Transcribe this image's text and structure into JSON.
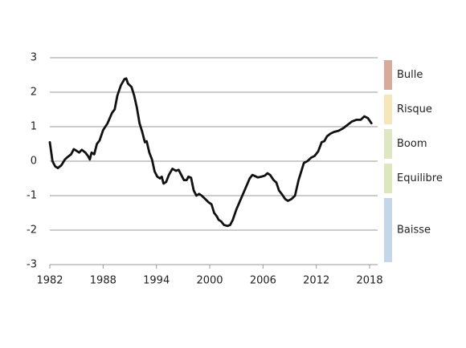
{
  "chart_data": {
    "type": "line",
    "x": [
      1982.0,
      1982.3,
      1982.6,
      1982.9,
      1983.3,
      1983.7,
      1984.0,
      1984.4,
      1984.7,
      1985.0,
      1985.3,
      1985.6,
      1986.0,
      1986.3,
      1986.5,
      1986.7,
      1987.0,
      1987.3,
      1987.6,
      1988.0,
      1988.5,
      1989.0,
      1989.3,
      1989.6,
      1990.0,
      1990.4,
      1990.6,
      1990.8,
      1991.2,
      1991.5,
      1991.8,
      1992.1,
      1992.4,
      1992.7,
      1992.9,
      1993.2,
      1993.5,
      1993.8,
      1994.1,
      1994.4,
      1994.6,
      1994.8,
      1995.1,
      1995.4,
      1995.8,
      1996.2,
      1996.5,
      1996.8,
      1997.1,
      1997.4,
      1997.6,
      1997.9,
      1998.2,
      1998.5,
      1998.8,
      1999.1,
      1999.5,
      1999.9,
      2000.2,
      2000.5,
      2000.8,
      2001.0,
      2001.3,
      2001.6,
      2002.0,
      2002.3,
      2002.6,
      2003.0,
      2003.5,
      2004.0,
      2004.5,
      2004.8,
      2005.0,
      2005.4,
      2005.8,
      2006.2,
      2006.5,
      2006.8,
      2007.2,
      2007.5,
      2007.8,
      2008.1,
      2008.5,
      2008.8,
      2009.2,
      2009.6,
      2010.0,
      2010.3,
      2010.6,
      2011.0,
      2011.4,
      2011.8,
      2012.2,
      2012.6,
      2012.9,
      2013.2,
      2013.6,
      2014.0,
      2014.5,
      2015.0,
      2015.5,
      2016.0,
      2016.5,
      2017.0,
      2017.4,
      2017.8,
      2018.2
    ],
    "values": [
      0.55,
      0.0,
      -0.15,
      -0.2,
      -0.12,
      0.05,
      0.12,
      0.2,
      0.35,
      0.3,
      0.25,
      0.33,
      0.25,
      0.15,
      0.05,
      0.25,
      0.2,
      0.5,
      0.6,
      0.9,
      1.1,
      1.4,
      1.5,
      1.9,
      2.2,
      2.38,
      2.4,
      2.25,
      2.15,
      1.9,
      1.55,
      1.1,
      0.85,
      0.55,
      0.58,
      0.25,
      0.05,
      -0.3,
      -0.45,
      -0.5,
      -0.45,
      -0.65,
      -0.6,
      -0.4,
      -0.22,
      -0.28,
      -0.25,
      -0.4,
      -0.55,
      -0.55,
      -0.45,
      -0.48,
      -0.85,
      -1.0,
      -0.95,
      -1.0,
      -1.1,
      -1.2,
      -1.25,
      -1.5,
      -1.6,
      -1.7,
      -1.75,
      -1.85,
      -1.88,
      -1.85,
      -1.7,
      -1.4,
      -1.1,
      -0.8,
      -0.5,
      -0.4,
      -0.42,
      -0.47,
      -0.45,
      -0.42,
      -0.35,
      -0.4,
      -0.55,
      -0.62,
      -0.85,
      -0.95,
      -1.1,
      -1.15,
      -1.1,
      -1.0,
      -0.55,
      -0.3,
      -0.05,
      0.0,
      0.1,
      0.15,
      0.28,
      0.55,
      0.58,
      0.72,
      0.8,
      0.85,
      0.88,
      0.95,
      1.05,
      1.15,
      1.2,
      1.2,
      1.3,
      1.25,
      1.1
    ],
    "color": "#111111",
    "xlim": [
      1982,
      2018.9
    ],
    "xticks": [
      1982,
      1988,
      1994,
      2000,
      2006,
      2012,
      2018
    ],
    "ylim": [
      -3,
      3
    ],
    "yticks": [
      -3,
      -2,
      -1,
      0,
      1,
      2,
      3
    ],
    "grid": true,
    "bands": [
      {
        "label": "Bulle",
        "color": "#d6ab9b",
        "range": [
          2,
          3
        ]
      },
      {
        "label": "Risque",
        "color": "#f6e6bc",
        "range": [
          1,
          2
        ]
      },
      {
        "label": "Boom",
        "color": "#dfe6c2",
        "range": [
          0,
          1
        ]
      },
      {
        "label": "Equilibre",
        "color": "#dde6bc",
        "range": [
          -1,
          0
        ]
      },
      {
        "label": "Baisse",
        "color": "#c3d6ec",
        "range": [
          -3,
          -1
        ]
      }
    ]
  }
}
